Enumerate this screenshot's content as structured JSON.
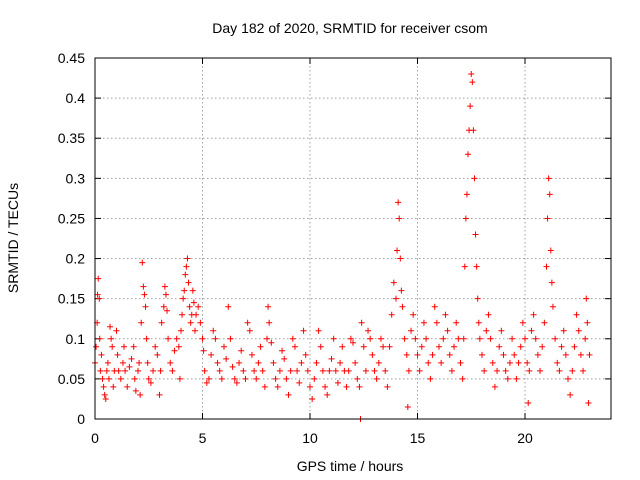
{
  "chart_data": {
    "type": "scatter",
    "title": "Day 182 of 2020, SRMTID for receiver csom",
    "xlabel": "GPS time / hours",
    "ylabel": "SRMTID / TECUs",
    "xlim": [
      0,
      24
    ],
    "ylim": [
      0,
      0.45
    ],
    "xticks": [
      0,
      5,
      10,
      15,
      20
    ],
    "yticks": [
      0,
      0.05,
      0.1,
      0.15,
      0.2,
      0.25,
      0.3,
      0.35,
      0.4,
      0.45
    ],
    "xtick_labels": [
      "0",
      "5",
      "10",
      "15",
      "20"
    ],
    "ytick_labels": [
      "0",
      "0.05",
      "0.1",
      "0.15",
      "0.2",
      "0.25",
      "0.3",
      "0.35",
      "0.4",
      "0.45"
    ],
    "grid": true,
    "marker": "+",
    "color": "#ff0000",
    "series": [
      {
        "name": "csom",
        "points": [
          [
            0.0,
            0.07
          ],
          [
            0.05,
            0.09
          ],
          [
            0.1,
            0.12
          ],
          [
            0.12,
            0.155
          ],
          [
            0.15,
            0.175
          ],
          [
            0.2,
            0.15
          ],
          [
            0.22,
            0.1
          ],
          [
            0.25,
            0.06
          ],
          [
            0.3,
            0.08
          ],
          [
            0.35,
            0.05
          ],
          [
            0.4,
            0.04
          ],
          [
            0.45,
            0.03
          ],
          [
            0.5,
            0.025
          ],
          [
            0.55,
            0.06
          ],
          [
            0.6,
            0.07
          ],
          [
            0.65,
            0.05
          ],
          [
            0.7,
            0.115
          ],
          [
            0.75,
            0.1
          ],
          [
            0.8,
            0.09
          ],
          [
            0.85,
            0.04
          ],
          [
            0.9,
            0.06
          ],
          [
            1.0,
            0.11
          ],
          [
            1.05,
            0.08
          ],
          [
            1.1,
            0.06
          ],
          [
            1.2,
            0.05
          ],
          [
            1.3,
            0.07
          ],
          [
            1.35,
            0.09
          ],
          [
            1.4,
            0.06
          ],
          [
            1.5,
            0.04
          ],
          [
            1.6,
            0.065
          ],
          [
            1.7,
            0.075
          ],
          [
            1.8,
            0.09
          ],
          [
            1.85,
            0.05
          ],
          [
            1.9,
            0.035
          ],
          [
            2.0,
            0.06
          ],
          [
            2.05,
            0.07
          ],
          [
            2.1,
            0.03
          ],
          [
            2.15,
            0.12
          ],
          [
            2.2,
            0.195
          ],
          [
            2.25,
            0.165
          ],
          [
            2.3,
            0.155
          ],
          [
            2.35,
            0.14
          ],
          [
            2.4,
            0.1
          ],
          [
            2.45,
            0.07
          ],
          [
            2.5,
            0.05
          ],
          [
            2.6,
            0.045
          ],
          [
            2.7,
            0.06
          ],
          [
            2.8,
            0.09
          ],
          [
            2.9,
            0.08
          ],
          [
            3.0,
            0.03
          ],
          [
            3.05,
            0.06
          ],
          [
            3.1,
            0.12
          ],
          [
            3.2,
            0.14
          ],
          [
            3.25,
            0.165
          ],
          [
            3.3,
            0.155
          ],
          [
            3.35,
            0.135
          ],
          [
            3.4,
            0.1
          ],
          [
            3.5,
            0.07
          ],
          [
            3.6,
            0.06
          ],
          [
            3.7,
            0.085
          ],
          [
            3.8,
            0.1
          ],
          [
            3.9,
            0.09
          ],
          [
            3.95,
            0.05
          ],
          [
            4.0,
            0.11
          ],
          [
            4.05,
            0.13
          ],
          [
            4.1,
            0.15
          ],
          [
            4.15,
            0.16
          ],
          [
            4.2,
            0.18
          ],
          [
            4.25,
            0.19
          ],
          [
            4.3,
            0.2
          ],
          [
            4.35,
            0.17
          ],
          [
            4.4,
            0.14
          ],
          [
            4.45,
            0.12
          ],
          [
            4.5,
            0.13
          ],
          [
            4.55,
            0.16
          ],
          [
            4.6,
            0.145
          ],
          [
            4.65,
            0.11
          ],
          [
            4.7,
            0.13
          ],
          [
            4.8,
            0.14
          ],
          [
            4.9,
            0.12
          ],
          [
            5.0,
            0.1
          ],
          [
            5.05,
            0.085
          ],
          [
            5.1,
            0.06
          ],
          [
            5.2,
            0.045
          ],
          [
            5.3,
            0.05
          ],
          [
            5.4,
            0.08
          ],
          [
            5.5,
            0.11
          ],
          [
            5.6,
            0.1
          ],
          [
            5.7,
            0.07
          ],
          [
            5.8,
            0.06
          ],
          [
            5.9,
            0.05
          ],
          [
            6.0,
            0.09
          ],
          [
            6.1,
            0.075
          ],
          [
            6.2,
            0.14
          ],
          [
            6.3,
            0.1
          ],
          [
            6.4,
            0.065
          ],
          [
            6.5,
            0.05
          ],
          [
            6.6,
            0.045
          ],
          [
            6.7,
            0.07
          ],
          [
            6.8,
            0.085
          ],
          [
            6.9,
            0.06
          ],
          [
            7.0,
            0.05
          ],
          [
            7.1,
            0.12
          ],
          [
            7.2,
            0.11
          ],
          [
            7.3,
            0.08
          ],
          [
            7.4,
            0.06
          ],
          [
            7.5,
            0.05
          ],
          [
            7.6,
            0.07
          ],
          [
            7.7,
            0.09
          ],
          [
            7.8,
            0.06
          ],
          [
            7.9,
            0.04
          ],
          [
            8.0,
            0.1
          ],
          [
            8.05,
            0.14
          ],
          [
            8.1,
            0.12
          ],
          [
            8.2,
            0.095
          ],
          [
            8.3,
            0.07
          ],
          [
            8.4,
            0.05
          ],
          [
            8.5,
            0.04
          ],
          [
            8.6,
            0.06
          ],
          [
            8.7,
            0.085
          ],
          [
            8.8,
            0.075
          ],
          [
            8.9,
            0.05
          ],
          [
            9.0,
            0.03
          ],
          [
            9.1,
            0.06
          ],
          [
            9.2,
            0.1
          ],
          [
            9.3,
            0.09
          ],
          [
            9.4,
            0.06
          ],
          [
            9.5,
            0.045
          ],
          [
            9.6,
            0.07
          ],
          [
            9.7,
            0.11
          ],
          [
            9.8,
            0.08
          ],
          [
            9.9,
            0.06
          ],
          [
            10.0,
            0.04
          ],
          [
            10.1,
            0.025
          ],
          [
            10.2,
            0.05
          ],
          [
            10.3,
            0.07
          ],
          [
            10.4,
            0.11
          ],
          [
            10.5,
            0.09
          ],
          [
            10.6,
            0.06
          ],
          [
            10.7,
            0.04
          ],
          [
            10.8,
            0.03
          ],
          [
            10.9,
            0.06
          ],
          [
            11.0,
            0.075
          ],
          [
            11.1,
            0.1
          ],
          [
            11.2,
            0.06
          ],
          [
            11.3,
            0.045
          ],
          [
            11.4,
            0.07
          ],
          [
            11.5,
            0.09
          ],
          [
            11.6,
            0.06
          ],
          [
            11.7,
            0.04
          ],
          [
            11.8,
            0.06
          ],
          [
            11.9,
            0.1
          ],
          [
            12.0,
            0.095
          ],
          [
            12.1,
            0.07
          ],
          [
            12.2,
            0.05
          ],
          [
            12.3,
            0.04
          ],
          [
            12.35,
            0.0
          ],
          [
            12.4,
            0.12
          ],
          [
            12.5,
            0.09
          ],
          [
            12.6,
            0.06
          ],
          [
            12.7,
            0.11
          ],
          [
            12.8,
            0.1
          ],
          [
            12.9,
            0.08
          ],
          [
            13.0,
            0.06
          ],
          [
            13.1,
            0.05
          ],
          [
            13.2,
            0.07
          ],
          [
            13.3,
            0.1
          ],
          [
            13.4,
            0.09
          ],
          [
            13.5,
            0.06
          ],
          [
            13.6,
            0.04
          ],
          [
            13.7,
            0.09
          ],
          [
            13.8,
            0.13
          ],
          [
            13.9,
            0.17
          ],
          [
            14.0,
            0.15
          ],
          [
            14.05,
            0.21
          ],
          [
            14.1,
            0.27
          ],
          [
            14.15,
            0.25
          ],
          [
            14.2,
            0.2
          ],
          [
            14.25,
            0.16
          ],
          [
            14.3,
            0.14
          ],
          [
            14.4,
            0.1
          ],
          [
            14.5,
            0.08
          ],
          [
            14.55,
            0.015
          ],
          [
            14.6,
            0.06
          ],
          [
            14.7,
            0.11
          ],
          [
            14.8,
            0.13
          ],
          [
            14.9,
            0.1
          ],
          [
            15.0,
            0.08
          ],
          [
            15.1,
            0.06
          ],
          [
            15.2,
            0.09
          ],
          [
            15.3,
            0.12
          ],
          [
            15.4,
            0.1
          ],
          [
            15.5,
            0.07
          ],
          [
            15.6,
            0.05
          ],
          [
            15.7,
            0.08
          ],
          [
            15.8,
            0.14
          ],
          [
            15.9,
            0.12
          ],
          [
            16.0,
            0.09
          ],
          [
            16.1,
            0.07
          ],
          [
            16.2,
            0.1
          ],
          [
            16.3,
            0.13
          ],
          [
            16.4,
            0.11
          ],
          [
            16.5,
            0.08
          ],
          [
            16.6,
            0.06
          ],
          [
            16.7,
            0.09
          ],
          [
            16.8,
            0.12
          ],
          [
            16.9,
            0.1
          ],
          [
            17.0,
            0.07
          ],
          [
            17.1,
            0.05
          ],
          [
            17.15,
            0.1
          ],
          [
            17.2,
            0.19
          ],
          [
            17.25,
            0.25
          ],
          [
            17.3,
            0.28
          ],
          [
            17.35,
            0.33
          ],
          [
            17.4,
            0.36
          ],
          [
            17.45,
            0.39
          ],
          [
            17.5,
            0.43
          ],
          [
            17.55,
            0.42
          ],
          [
            17.6,
            0.36
          ],
          [
            17.65,
            0.3
          ],
          [
            17.7,
            0.23
          ],
          [
            17.75,
            0.19
          ],
          [
            17.8,
            0.15
          ],
          [
            17.85,
            0.12
          ],
          [
            17.9,
            0.1
          ],
          [
            18.0,
            0.08
          ],
          [
            18.1,
            0.06
          ],
          [
            18.2,
            0.11
          ],
          [
            18.3,
            0.13
          ],
          [
            18.4,
            0.1
          ],
          [
            18.5,
            0.07
          ],
          [
            18.6,
            0.04
          ],
          [
            18.7,
            0.06
          ],
          [
            18.8,
            0.09
          ],
          [
            18.9,
            0.11
          ],
          [
            19.0,
            0.08
          ],
          [
            19.1,
            0.06
          ],
          [
            19.2,
            0.05
          ],
          [
            19.3,
            0.07
          ],
          [
            19.4,
            0.1
          ],
          [
            19.5,
            0.08
          ],
          [
            19.6,
            0.05
          ],
          [
            19.7,
            0.07
          ],
          [
            19.8,
            0.09
          ],
          [
            19.9,
            0.12
          ],
          [
            20.0,
            0.1
          ],
          [
            20.1,
            0.07
          ],
          [
            20.15,
            0.02
          ],
          [
            20.2,
            0.06
          ],
          [
            20.3,
            0.11
          ],
          [
            20.4,
            0.13
          ],
          [
            20.5,
            0.1
          ],
          [
            20.6,
            0.08
          ],
          [
            20.7,
            0.06
          ],
          [
            20.8,
            0.09
          ],
          [
            20.9,
            0.12
          ],
          [
            21.0,
            0.19
          ],
          [
            21.05,
            0.25
          ],
          [
            21.1,
            0.3
          ],
          [
            21.15,
            0.28
          ],
          [
            21.2,
            0.21
          ],
          [
            21.25,
            0.17
          ],
          [
            21.3,
            0.14
          ],
          [
            21.4,
            0.1
          ],
          [
            21.5,
            0.07
          ],
          [
            21.6,
            0.06
          ],
          [
            21.7,
            0.09
          ],
          [
            21.8,
            0.11
          ],
          [
            21.9,
            0.08
          ],
          [
            22.0,
            0.05
          ],
          [
            22.1,
            0.03
          ],
          [
            22.2,
            0.06
          ],
          [
            22.3,
            0.09
          ],
          [
            22.4,
            0.13
          ],
          [
            22.5,
            0.11
          ],
          [
            22.6,
            0.08
          ],
          [
            22.7,
            0.06
          ],
          [
            22.8,
            0.1
          ],
          [
            22.85,
            0.15
          ],
          [
            22.9,
            0.12
          ],
          [
            22.95,
            0.02
          ],
          [
            23.0,
            0.08
          ]
        ]
      }
    ]
  }
}
